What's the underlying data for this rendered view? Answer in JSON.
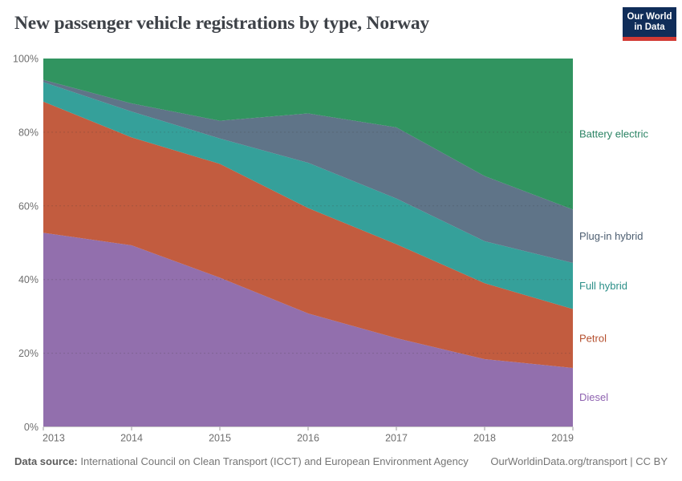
{
  "header": {
    "title": "New passenger vehicle registrations by type, Norway"
  },
  "logo": {
    "line1": "Our World",
    "line2": "in Data",
    "bg_color": "#102d59",
    "bar_color": "#d23a34"
  },
  "chart_data": {
    "type": "area",
    "stacked": true,
    "unit": "%",
    "title": "New passenger vehicle registrations by type, Norway",
    "xlabel": "",
    "ylabel": "",
    "ylim": [
      0,
      100
    ],
    "grid": "horizontal dashed lines at 20/40/60/80, drawn over areas",
    "legend_position": "right edge, inline series labels",
    "x": [
      2013,
      2014,
      2015,
      2016,
      2017,
      2018,
      2019
    ],
    "series": [
      {
        "name": "Battery electric",
        "color": "#319460",
        "label_color": "#2c8465",
        "values": [
          5.8,
          12.2,
          16.9,
          14.9,
          18.7,
          31.9,
          41.0
        ]
      },
      {
        "name": "Plug-in hybrid",
        "color": "#5f7488",
        "label_color": "#4d5e71",
        "values": [
          0.6,
          2.2,
          4.8,
          13.4,
          19.3,
          17.7,
          14.5
        ]
      },
      {
        "name": "Full hybrid",
        "color": "#35a09a",
        "label_color": "#2b8f88",
        "values": [
          5.3,
          7.0,
          6.9,
          12.3,
          12.4,
          11.4,
          12.5
        ]
      },
      {
        "name": "Petrol",
        "color": "#c25c3f",
        "label_color": "#b5502f",
        "values": [
          35.6,
          29.3,
          30.9,
          28.6,
          25.5,
          20.6,
          16.0
        ]
      },
      {
        "name": "Diesel",
        "color": "#926fad",
        "label_color": "#8e62b0",
        "values": [
          52.7,
          49.3,
          40.5,
          30.8,
          24.1,
          18.4,
          16.0
        ]
      }
    ],
    "y_ticks": [
      {
        "value": 0,
        "label": "0%"
      },
      {
        "value": 20,
        "label": "20%"
      },
      {
        "value": 40,
        "label": "40%"
      },
      {
        "value": 60,
        "label": "60%"
      },
      {
        "value": 80,
        "label": "80%"
      },
      {
        "value": 100,
        "label": "100%"
      }
    ],
    "x_tick_labels": [
      "2013",
      "2014",
      "2015",
      "2016",
      "2017",
      "2018",
      "2019"
    ]
  },
  "footer": {
    "source_label": "Data source:",
    "source_text": "International Council on Clean Transport (ICCT) and European Environment Agency",
    "link_text": "OurWorldinData.org/transport | CC BY"
  }
}
